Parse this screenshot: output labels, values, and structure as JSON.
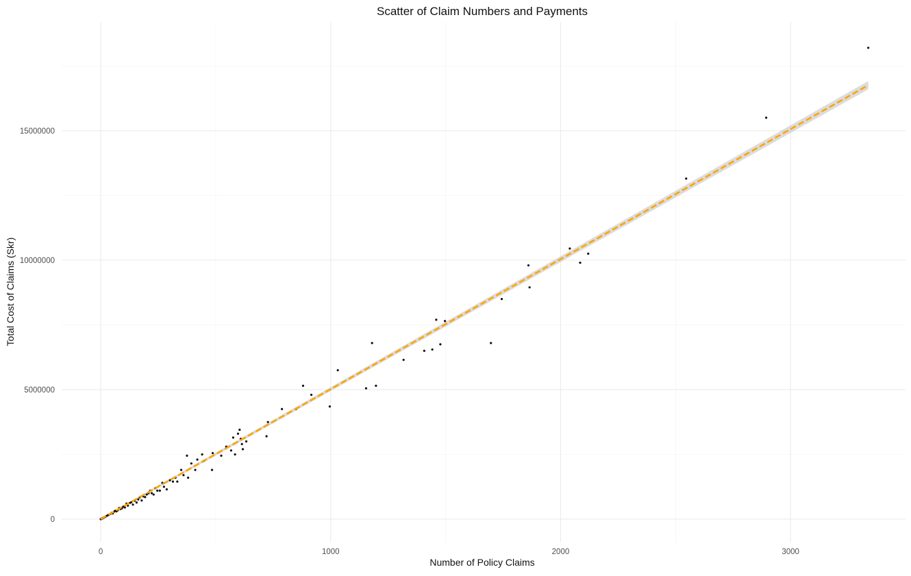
{
  "chart_data": {
    "type": "scatter",
    "title": "Scatter of Claim Numbers and Payments",
    "xlabel": "Number of Policy Claims",
    "ylabel": "Total Cost of Claims (Skr)",
    "xlim": [
      -170,
      3500
    ],
    "ylim": [
      -900000,
      19200000
    ],
    "x_ticks": [
      0,
      1000,
      2000,
      3000
    ],
    "x_tick_labels": [
      "0",
      "1000",
      "2000",
      "3000"
    ],
    "y_ticks": [
      0,
      5000000,
      10000000,
      15000000
    ],
    "y_tick_labels": [
      "0",
      "5000000",
      "10000000",
      "15000000"
    ],
    "grid": true,
    "colors": {
      "points": "#111111",
      "fit_line": "#ffa500",
      "confidence_band": "#bfbfbf"
    },
    "fit_line": {
      "type": "linear",
      "style": "dashed",
      "intercept": 0,
      "slope": 5020,
      "x_range": [
        0,
        3338
      ]
    },
    "series": [
      {
        "x": [
          3338,
          2894,
          2546,
          2040,
          2120,
          1860,
          2085,
          1865,
          1744,
          1697,
          1459,
          1497,
          1477,
          1442,
          1407,
          1317,
          1180,
          1031,
          1197,
          1154,
          996,
          880,
          916,
          788,
          849,
          727,
          721,
          604,
          597,
          576,
          584,
          609,
          614,
          633,
          618,
          567,
          546,
          524,
          484,
          487,
          449,
          441,
          420,
          411,
          394,
          380,
          375,
          360,
          350,
          333,
          325,
          314,
          301,
          287,
          275,
          268,
          257,
          246,
          238,
          230,
          222,
          215,
          208,
          200,
          193,
          185,
          178,
          170,
          163,
          156,
          148,
          140,
          133,
          126,
          118,
          112,
          105,
          98,
          92,
          86,
          80,
          74,
          68,
          62,
          57,
          52,
          47,
          42,
          37,
          33,
          29,
          25,
          21,
          18,
          15,
          12,
          9,
          7,
          5,
          3,
          2,
          1,
          0
        ],
        "y": [
          18200000,
          15500000,
          13150000,
          10450000,
          10250000,
          9800000,
          9900000,
          8950000,
          8500000,
          6800000,
          7700000,
          7650000,
          6750000,
          6550000,
          6500000,
          6150000,
          6800000,
          5750000,
          5150000,
          5050000,
          4350000,
          5150000,
          4800000,
          4250000,
          4250000,
          3750000,
          3200000,
          3450000,
          3300000,
          3150000,
          2500000,
          3100000,
          2900000,
          3000000,
          2700000,
          2650000,
          2800000,
          2450000,
          1900000,
          2550000,
          2250000,
          2500000,
          2300000,
          1900000,
          2150000,
          1600000,
          2450000,
          1700000,
          1900000,
          1450000,
          1600000,
          1450000,
          1500000,
          1150000,
          1250000,
          1400000,
          1100000,
          1100000,
          1200000,
          950000,
          1000000,
          1100000,
          1000000,
          950000,
          850000,
          880000,
          720000,
          840000,
          760000,
          640000,
          710000,
          560000,
          650000,
          620000,
          520000,
          600000,
          450000,
          480000,
          420000,
          390000,
          430000,
          340000,
          300000,
          320000,
          280000,
          220000,
          240000,
          200000,
          180000,
          160000,
          140000,
          120000,
          100000,
          85000,
          70000,
          55000,
          45000,
          30000,
          20000,
          12000,
          8000,
          4000,
          0
        ]
      }
    ]
  }
}
